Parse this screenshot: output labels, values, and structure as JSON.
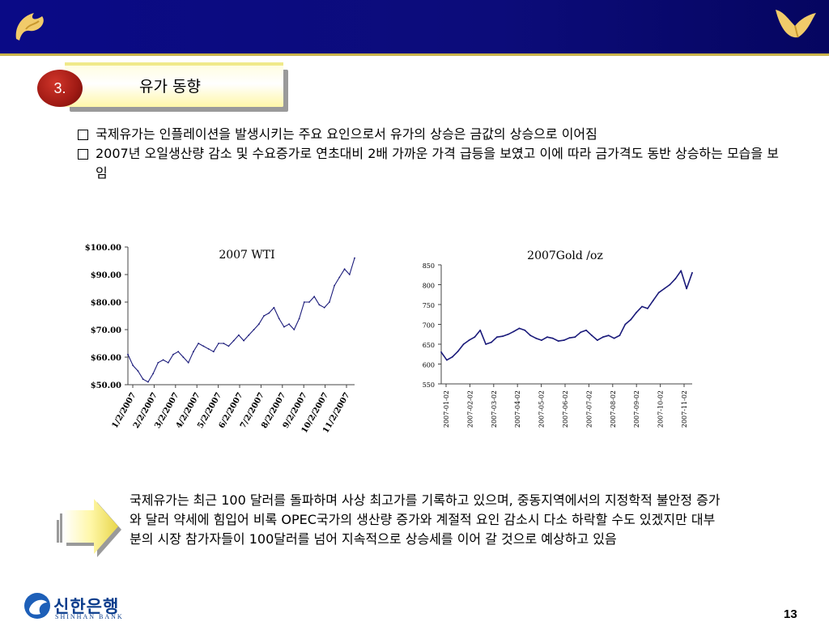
{
  "section": {
    "number": "3.",
    "title": "유가 동향"
  },
  "bullets": [
    "국제유가는 인플레이션을 발생시키는 주요 요인으로서 유가의 상승은 금값의 상승으로 이어짐",
    "2007년 오일생산량 감소 및 수요증가로 연초대비 2배 가까운 가격 급등을 보였고 이에 따라 금가격도 동반 상승하는 모습을 보임"
  ],
  "summary": "국제유가는 최근 100 달러를 돌파하며 사상 최고가를 기록하고 있으며, 중동지역에서의 지정학적 불안정 증가와 달러 약세에 힘입어 비록 OPEC국가의 생산량 증가와 계절적 요인 감소시 다소 하락할 수도 있겠지만 대부분의 시장 참가자들이 100달러를 넘어  지속적으로 상승세를 이어 갈 것으로 예상하고 있음",
  "footer": {
    "bank_ko": "신한은행",
    "bank_en": "SHINHAN BANK",
    "page": "13"
  },
  "colors": {
    "line": "#1a1a7a",
    "header": "#0a0a86"
  },
  "chart_data": [
    {
      "type": "line",
      "title": "2007 WTI",
      "ylim": [
        50,
        100
      ],
      "yticks": [
        "$100.00",
        "$90.00",
        "$80.00",
        "$70.00",
        "$60.00",
        "$50.00"
      ],
      "xticks": [
        "1/2/2007",
        "2/2/2007",
        "3/2/2007",
        "4/2/2007",
        "5/2/2007",
        "6/2/2007",
        "7/2/2007",
        "8/2/2007",
        "9/2/2007",
        "10/2/2007",
        "11/2/2007"
      ],
      "x": [
        1,
        2,
        3,
        4,
        5,
        6,
        7,
        8,
        9,
        10,
        11,
        12,
        13,
        14,
        15,
        16,
        17,
        18,
        19,
        20,
        21,
        22,
        23,
        24,
        25,
        26,
        27,
        28,
        29,
        30,
        31,
        32,
        33,
        34,
        35,
        36,
        37,
        38,
        39,
        40,
        41,
        42,
        43,
        44,
        45,
        46
      ],
      "values": [
        61,
        57,
        55,
        52,
        51,
        54,
        58,
        59,
        58,
        61,
        62,
        60,
        58,
        62,
        65,
        64,
        63,
        62,
        65,
        65,
        64,
        66,
        68,
        66,
        68,
        70,
        72,
        75,
        76,
        78,
        74,
        71,
        72,
        70,
        74,
        80,
        80,
        82,
        79,
        78,
        80,
        86,
        89,
        92,
        90,
        96
      ]
    },
    {
      "type": "line",
      "title": "2007Gold /oz",
      "ylim": [
        550,
        850
      ],
      "yticks": [
        "850",
        "800",
        "750",
        "700",
        "650",
        "600",
        "550"
      ],
      "xticks": [
        "2007-01-02",
        "2007-02-02",
        "2007-03-02",
        "2007-04-02",
        "2007-05-02",
        "2007-06-02",
        "2007-07-02",
        "2007-08-02",
        "2007-09-02",
        "2007-10-02",
        "2007-11-02"
      ],
      "x": [
        1,
        2,
        3,
        4,
        5,
        6,
        7,
        8,
        9,
        10,
        11,
        12,
        13,
        14,
        15,
        16,
        17,
        18,
        19,
        20,
        21,
        22,
        23,
        24,
        25,
        26,
        27,
        28,
        29,
        30,
        31,
        32,
        33,
        34,
        35,
        36,
        37,
        38,
        39,
        40,
        41,
        42,
        43,
        44,
        45,
        46
      ],
      "values": [
        630,
        610,
        618,
        632,
        650,
        660,
        668,
        685,
        650,
        655,
        668,
        670,
        675,
        682,
        690,
        685,
        672,
        665,
        660,
        668,
        665,
        658,
        660,
        666,
        668,
        680,
        685,
        672,
        660,
        668,
        672,
        665,
        672,
        700,
        712,
        730,
        745,
        740,
        760,
        780,
        790,
        800,
        815,
        835,
        790,
        830
      ]
    }
  ]
}
